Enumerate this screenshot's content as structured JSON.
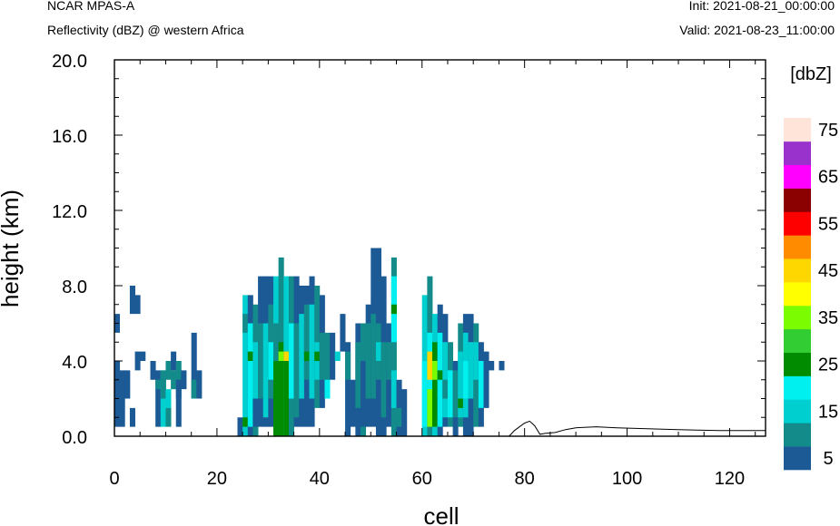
{
  "header": {
    "model": "NCAR MPAS-A",
    "field": "Reflectivity (dBZ) @ western Africa",
    "init": "Init: 2021-08-21_00:00:00",
    "valid": "Valid: 2021-08-23_11:00:00"
  },
  "chart_data": {
    "type": "heatmap",
    "title": "Reflectivity (dBZ) @ western Africa",
    "xlabel": "cell",
    "ylabel": "height (km)",
    "xlim": [
      0,
      127
    ],
    "ylim": [
      0,
      20
    ],
    "x_ticks": [
      "0",
      "20",
      "40",
      "60",
      "80",
      "100",
      "120"
    ],
    "y_ticks": [
      "0.0",
      "4.0",
      "8.0",
      "12.0",
      "16.0",
      "20.0"
    ],
    "colorbar": {
      "unit": "[dbZ]",
      "bins": [
        {
          "from": 0,
          "to": 5,
          "color": "#1c5a96"
        },
        {
          "from": 5,
          "to": 10,
          "color": "#138b8b"
        },
        {
          "from": 10,
          "to": 15,
          "color": "#00cfd0"
        },
        {
          "from": 15,
          "to": 20,
          "color": "#00f0f0"
        },
        {
          "from": 20,
          "to": 25,
          "color": "#008b00"
        },
        {
          "from": 25,
          "to": 30,
          "color": "#32cd32"
        },
        {
          "from": 30,
          "to": 35,
          "color": "#7cfc00"
        },
        {
          "from": 35,
          "to": 40,
          "color": "#ffff00"
        },
        {
          "from": 40,
          "to": 45,
          "color": "#ffd700"
        },
        {
          "from": 45,
          "to": 50,
          "color": "#ff8c00"
        },
        {
          "from": 50,
          "to": 55,
          "color": "#ff0000"
        },
        {
          "from": 55,
          "to": 60,
          "color": "#8b0000"
        },
        {
          "from": 60,
          "to": 65,
          "color": "#ff00ff"
        },
        {
          "from": 65,
          "to": 70,
          "color": "#9932cc"
        },
        {
          "from": 70,
          "to": 75,
          "color": "#ffe4da"
        }
      ],
      "tick_labels": [
        "5",
        "15",
        "25",
        "35",
        "45",
        "55",
        "65",
        "75"
      ]
    },
    "cell_height_km": 0.5,
    "dbz_columns": [
      {
        "x": 0,
        "segs": [
          [
            5.5,
            6.5,
            2
          ],
          [
            0.5,
            4.0,
            2
          ]
        ]
      },
      {
        "x": 1,
        "segs": [
          [
            0.5,
            2.0,
            2
          ],
          [
            2.0,
            3.5,
            2
          ]
        ]
      },
      {
        "x": 2,
        "segs": [
          [
            2.0,
            3.5,
            2
          ]
        ]
      },
      {
        "x": 3,
        "segs": [
          [
            6.5,
            8.0,
            2
          ],
          [
            0.5,
            1.5,
            2
          ]
        ]
      },
      {
        "x": 4,
        "segs": [
          [
            6.5,
            7.5,
            2
          ],
          [
            3.5,
            4.5,
            2
          ]
        ]
      },
      {
        "x": 5,
        "segs": [
          [
            4.0,
            4.5,
            2
          ]
        ]
      },
      {
        "x": 7,
        "segs": [
          [
            3.0,
            4.0,
            2
          ]
        ]
      },
      {
        "x": 8,
        "segs": [
          [
            0.5,
            3.5,
            2
          ],
          [
            2.5,
            3.0,
            8
          ]
        ]
      },
      {
        "x": 9,
        "segs": [
          [
            0.5,
            3.5,
            12
          ],
          [
            2.0,
            3.5,
            8
          ]
        ]
      },
      {
        "x": 10,
        "segs": [
          [
            3.0,
            4.0,
            8
          ],
          [
            1.0,
            2.5,
            12
          ],
          [
            0.5,
            1.5,
            8
          ]
        ]
      },
      {
        "x": 11,
        "segs": [
          [
            3.5,
            4.5,
            2
          ],
          [
            2.5,
            3.5,
            8
          ]
        ]
      },
      {
        "x": 12,
        "segs": [
          [
            2.0,
            4.0,
            8
          ],
          [
            0.5,
            3.0,
            2
          ]
        ]
      },
      {
        "x": 13,
        "segs": [
          [
            2.5,
            3.5,
            2
          ]
        ]
      },
      {
        "x": 15,
        "segs": [
          [
            2.0,
            5.5,
            2
          ],
          [
            2.0,
            3.0,
            8
          ]
        ]
      },
      {
        "x": 16,
        "segs": [
          [
            2.0,
            3.5,
            2
          ]
        ]
      },
      {
        "x": 24,
        "segs": [
          [
            0,
            1,
            2
          ],
          [
            0.5,
            0.5,
            0
          ]
        ]
      },
      {
        "x": 25,
        "segs": [
          [
            0,
            7.5,
            12
          ],
          [
            5.5,
            6.5,
            8
          ],
          [
            0.5,
            1,
            22
          ]
        ]
      },
      {
        "x": 26,
        "segs": [
          [
            0,
            7.5,
            2
          ],
          [
            0.5,
            6,
            16
          ],
          [
            4,
            4.5,
            22
          ]
        ]
      },
      {
        "x": 27,
        "segs": [
          [
            0,
            7,
            8
          ],
          [
            2,
            5,
            12
          ],
          [
            0.5,
            2,
            2
          ]
        ]
      },
      {
        "x": 28,
        "segs": [
          [
            0.5,
            8.5,
            2
          ],
          [
            2,
            6,
            8
          ]
        ]
      },
      {
        "x": 29,
        "segs": [
          [
            0.5,
            8.5,
            2
          ],
          [
            1,
            6,
            12
          ]
        ]
      },
      {
        "x": 30,
        "segs": [
          [
            0.5,
            8.5,
            2
          ],
          [
            2,
            7,
            8
          ],
          [
            3,
            5,
            16
          ]
        ]
      },
      {
        "x": 31,
        "segs": [
          [
            0,
            8.5,
            12
          ],
          [
            3,
            6,
            8
          ],
          [
            0,
            4,
            22
          ]
        ]
      },
      {
        "x": 32,
        "segs": [
          [
            0,
            9.5,
            8
          ],
          [
            0,
            5,
            22
          ],
          [
            4,
            4.5,
            33
          ]
        ]
      },
      {
        "x": 33,
        "segs": [
          [
            0,
            8.5,
            12
          ],
          [
            0,
            4.5,
            22
          ],
          [
            4,
            4.5,
            40
          ]
        ]
      },
      {
        "x": 34,
        "segs": [
          [
            0,
            8.5,
            8
          ],
          [
            2,
            6,
            16
          ]
        ]
      },
      {
        "x": 35,
        "segs": [
          [
            0.5,
            8.5,
            2
          ],
          [
            1,
            6,
            8
          ]
        ]
      },
      {
        "x": 36,
        "segs": [
          [
            0.5,
            8,
            2
          ],
          [
            2,
            6.5,
            12
          ]
        ]
      },
      {
        "x": 37,
        "segs": [
          [
            0.5,
            8,
            2
          ],
          [
            3,
            7,
            8
          ],
          [
            4,
            4.5,
            22
          ]
        ]
      },
      {
        "x": 38,
        "segs": [
          [
            0.5,
            8.5,
            2
          ],
          [
            2,
            7,
            12
          ]
        ]
      },
      {
        "x": 39,
        "segs": [
          [
            1.5,
            8,
            8
          ],
          [
            3,
            5,
            12
          ],
          [
            4,
            4.5,
            22
          ]
        ]
      },
      {
        "x": 40,
        "segs": [
          [
            1.5,
            7.5,
            2
          ],
          [
            3,
            5.5,
            8
          ]
        ]
      },
      {
        "x": 41,
        "segs": [
          [
            2.5,
            5.5,
            8
          ],
          [
            2,
            3,
            16
          ]
        ]
      },
      {
        "x": 42,
        "segs": [
          [
            3,
            5.5,
            2
          ]
        ]
      },
      {
        "x": 43,
        "segs": [
          [
            4,
            4.5,
            12
          ]
        ]
      },
      {
        "x": 44,
        "segs": [
          [
            4.5,
            6.5,
            2
          ]
        ]
      },
      {
        "x": 45,
        "segs": [
          [
            0,
            5,
            2
          ],
          [
            3,
            4.5,
            8
          ]
        ]
      },
      {
        "x": 46,
        "segs": [
          [
            0.5,
            3,
            2
          ]
        ]
      },
      {
        "x": 47,
        "segs": [
          [
            0,
            6,
            2
          ],
          [
            1.5,
            5,
            8
          ]
        ]
      },
      {
        "x": 48,
        "segs": [
          [
            0,
            6,
            8
          ],
          [
            0.5,
            4,
            2
          ]
        ]
      },
      {
        "x": 49,
        "segs": [
          [
            0.5,
            7,
            2
          ],
          [
            2,
            6,
            8
          ]
        ]
      },
      {
        "x": 50,
        "segs": [
          [
            0.5,
            10,
            2
          ],
          [
            2,
            6.5,
            8
          ]
        ]
      },
      {
        "x": 51,
        "segs": [
          [
            0,
            10,
            2
          ],
          [
            3,
            6,
            8
          ],
          [
            4,
            5,
            12
          ]
        ]
      },
      {
        "x": 52,
        "segs": [
          [
            0,
            8.5,
            2
          ],
          [
            1,
            5,
            8
          ]
        ]
      },
      {
        "x": 53,
        "segs": [
          [
            0.5,
            6,
            2
          ],
          [
            3,
            5,
            8
          ]
        ]
      },
      {
        "x": 54,
        "segs": [
          [
            0,
            9.5,
            8
          ],
          [
            5,
            8.5,
            16
          ],
          [
            6.5,
            7,
            22
          ],
          [
            1.5,
            3.5,
            12
          ]
        ]
      },
      {
        "x": 55,
        "segs": [
          [
            0,
            3,
            2
          ],
          [
            0.5,
            1.5,
            8
          ]
        ]
      },
      {
        "x": 56,
        "segs": [
          [
            0,
            2.5,
            2
          ]
        ]
      },
      {
        "x": 60,
        "segs": [
          [
            0,
            7.5,
            12
          ],
          [
            0.5,
            4,
            16
          ]
        ]
      },
      {
        "x": 61,
        "segs": [
          [
            0,
            8.5,
            8
          ],
          [
            2,
            5.5,
            16
          ],
          [
            3,
            4.5,
            40
          ],
          [
            0.5,
            2.5,
            33
          ]
        ]
      },
      {
        "x": 62,
        "segs": [
          [
            0,
            6.5,
            12
          ],
          [
            0.5,
            5,
            22
          ],
          [
            3,
            4,
            33
          ]
        ]
      },
      {
        "x": 63,
        "segs": [
          [
            0,
            7,
            2
          ],
          [
            0.5,
            5.5,
            16
          ],
          [
            3,
            3.5,
            22
          ]
        ]
      },
      {
        "x": 64,
        "segs": [
          [
            0.5,
            6.5,
            2
          ],
          [
            1,
            5,
            12
          ],
          [
            2,
            3,
            8
          ]
        ]
      },
      {
        "x": 65,
        "segs": [
          [
            0.5,
            5,
            8
          ],
          [
            1,
            3.5,
            16
          ]
        ]
      },
      {
        "x": 66,
        "segs": [
          [
            0,
            4,
            2
          ],
          [
            1,
            3.5,
            8
          ]
        ]
      },
      {
        "x": 67,
        "segs": [
          [
            0.5,
            6,
            8
          ],
          [
            1,
            4.5,
            12
          ],
          [
            1.5,
            2,
            22
          ]
        ]
      },
      {
        "x": 68,
        "segs": [
          [
            0,
            6.5,
            2
          ],
          [
            1,
            5.5,
            12
          ],
          [
            2,
            4,
            16
          ]
        ]
      },
      {
        "x": 69,
        "segs": [
          [
            0,
            6.5,
            2
          ],
          [
            2,
            5,
            12
          ]
        ]
      },
      {
        "x": 70,
        "segs": [
          [
            0.5,
            6,
            8
          ],
          [
            3,
            5,
            12
          ]
        ]
      },
      {
        "x": 71,
        "segs": [
          [
            0.5,
            5,
            2
          ],
          [
            1.5,
            4,
            16
          ]
        ]
      },
      {
        "x": 72,
        "segs": [
          [
            1.5,
            4.5,
            2
          ]
        ]
      },
      {
        "x": 73,
        "segs": [
          [
            3.5,
            4,
            2
          ]
        ]
      },
      {
        "x": 75,
        "segs": [
          [
            3.5,
            4,
            2
          ]
        ]
      }
    ],
    "terrain": [
      [
        0,
        0
      ],
      [
        77,
        0
      ],
      [
        78,
        0.3
      ],
      [
        80,
        0.7
      ],
      [
        81,
        0.8
      ],
      [
        82,
        0.55
      ],
      [
        83,
        0.1
      ],
      [
        84,
        0.15
      ],
      [
        86,
        0.2
      ],
      [
        88,
        0.35
      ],
      [
        90,
        0.45
      ],
      [
        94,
        0.5
      ],
      [
        98,
        0.45
      ],
      [
        104,
        0.4
      ],
      [
        110,
        0.35
      ],
      [
        118,
        0.3
      ],
      [
        127,
        0.3
      ]
    ]
  }
}
